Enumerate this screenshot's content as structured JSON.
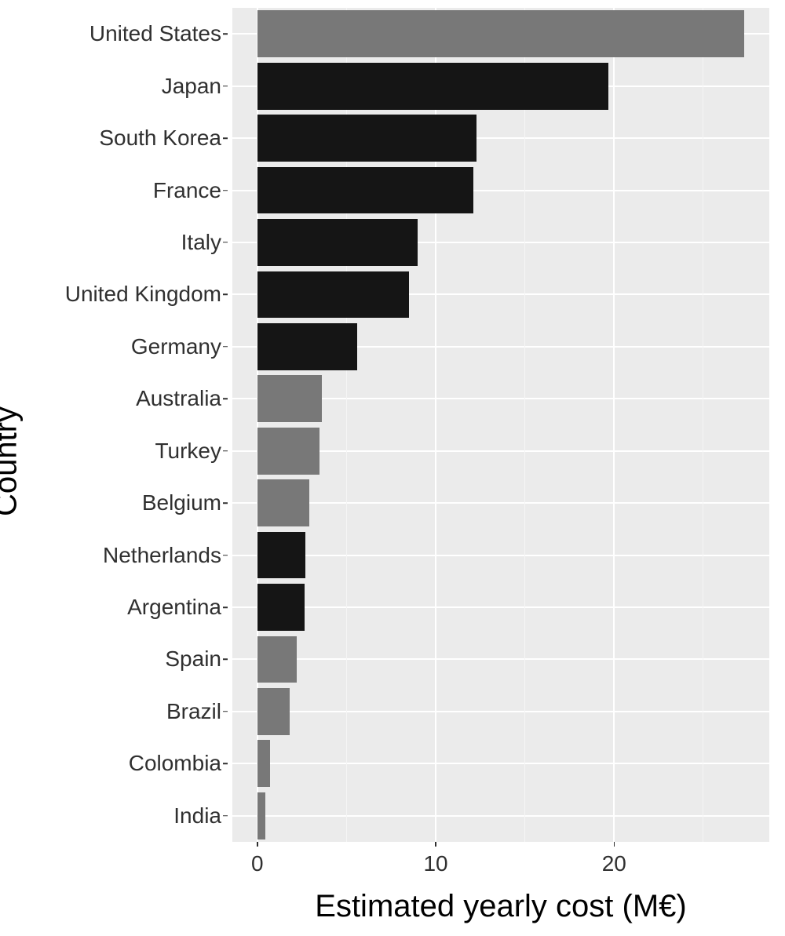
{
  "chart": {
    "type": "bar-horizontal",
    "y_axis_title": "Country",
    "x_axis_title": "Estimated yearly cost (M€)",
    "categories": [
      "United States",
      "Japan",
      "South Korea",
      "France",
      "Italy",
      "United Kingdom",
      "Germany",
      "Australia",
      "Turkey",
      "Belgium",
      "Netherlands",
      "Argentina",
      "Spain",
      "Brazil",
      "Colombia",
      "India"
    ],
    "values": [
      27.3,
      19.7,
      12.3,
      12.1,
      9.0,
      8.5,
      5.6,
      3.6,
      3.5,
      2.9,
      2.7,
      2.65,
      2.2,
      1.8,
      0.7,
      0.45
    ],
    "bar_colors": [
      "#787878",
      "#151515",
      "#151515",
      "#151515",
      "#151515",
      "#151515",
      "#151515",
      "#787878",
      "#787878",
      "#787878",
      "#151515",
      "#151515",
      "#787878",
      "#787878",
      "#787878",
      "#787878"
    ],
    "x_ticks": [
      0,
      10,
      20
    ],
    "x_minor_ticks": [
      5,
      15,
      25
    ],
    "xlim": [
      -1.4,
      28.7
    ],
    "panel_background": "#ebebeb",
    "grid_major_color": "#ffffff",
    "grid_minor_color": "#f5f5f5",
    "bar_relative_height": 0.9,
    "tick_color": "#303030",
    "axis_title_fontsize": 40,
    "tick_label_fontsize": 28
  }
}
